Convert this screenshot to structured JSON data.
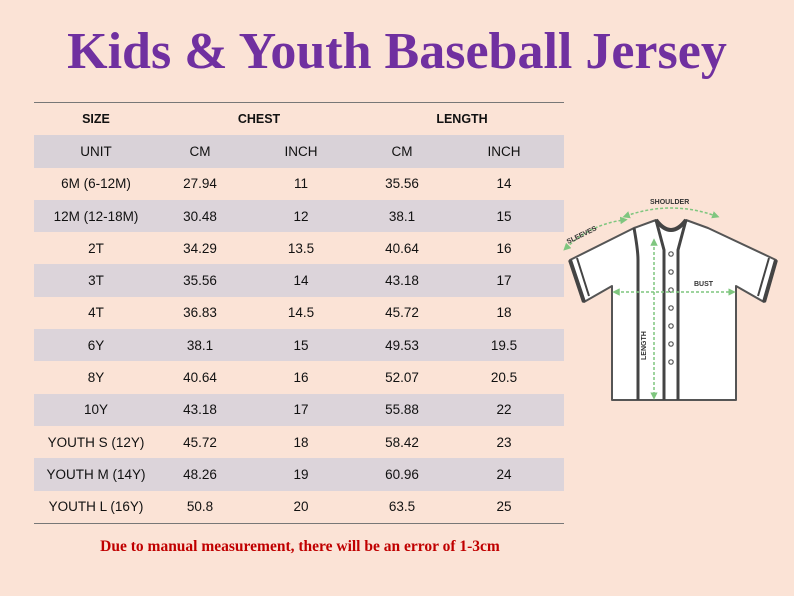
{
  "title": "Kids & Youth Baseball Jersey",
  "table": {
    "header": {
      "size": "SIZE",
      "chest": "CHEST",
      "length": "LENGTH"
    },
    "units": [
      "UNIT",
      "CM",
      "INCH",
      "CM",
      "INCH"
    ],
    "rows": [
      [
        "6M (6-12M)",
        "27.94",
        "11",
        "35.56",
        "14"
      ],
      [
        "12M (12-18M)",
        "30.48",
        "12",
        "38.1",
        "15"
      ],
      [
        "2T",
        "34.29",
        "13.5",
        "40.64",
        "16"
      ],
      [
        "3T",
        "35.56",
        "14",
        "43.18",
        "17"
      ],
      [
        "4T",
        "36.83",
        "14.5",
        "45.72",
        "18"
      ],
      [
        "6Y",
        "38.1",
        "15",
        "49.53",
        "19.5"
      ],
      [
        "8Y",
        "40.64",
        "16",
        "52.07",
        "20.5"
      ],
      [
        "10Y",
        "43.18",
        "17",
        "55.88",
        "22"
      ],
      [
        "YOUTH S (12Y)",
        "45.72",
        "18",
        "58.42",
        "23"
      ],
      [
        "YOUTH M (14Y)",
        "48.26",
        "19",
        "60.96",
        "24"
      ],
      [
        "YOUTH L (16Y)",
        "50.8",
        "20",
        "63.5",
        "25"
      ]
    ]
  },
  "diagram": {
    "shoulder": "SHOULDER",
    "sleeves": "SLEEVES",
    "bust": "BUST",
    "length": "LENGTH"
  },
  "note": "Due to manual measurement, there will be an error of 1-3cm",
  "colors": {
    "title": "#7030a0",
    "note": "#c00000",
    "band": "#dcd4da",
    "background": "#fbe3d6"
  }
}
